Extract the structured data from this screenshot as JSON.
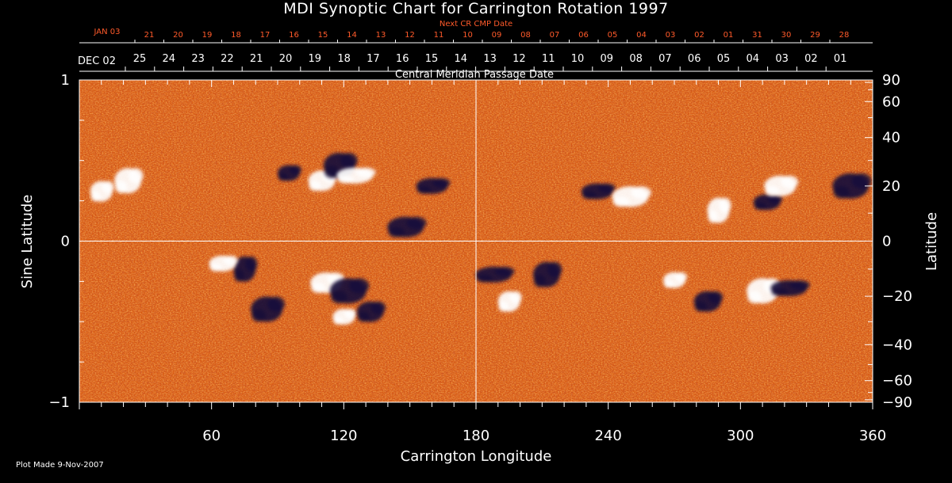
{
  "title": "MDI Synoptic Chart for Carrington Rotation 1997",
  "footer": "Plot Made  9-Nov-2007",
  "top_axis": {
    "next_cr_label": "Next CR CMP Date",
    "next_cr_start": "JAN 03",
    "next_cr_dates": [
      "21",
      "20",
      "19",
      "18",
      "17",
      "16",
      "15",
      "14",
      "13",
      "12",
      "11",
      "10",
      "09",
      "08",
      "07",
      "06",
      "05",
      "04",
      "03",
      "02",
      "01",
      "31",
      "30",
      "29",
      "28"
    ],
    "cmp_start": "DEC 02",
    "cmp_dates": [
      "25",
      "24",
      "23",
      "22",
      "21",
      "20",
      "19",
      "18",
      "17",
      "16",
      "15",
      "14",
      "13",
      "12",
      "11",
      "10",
      "09",
      "08",
      "07",
      "06",
      "05",
      "04",
      "03",
      "02",
      "01"
    ],
    "cmp_label": "Central Meridian Passage Date"
  },
  "colors": {
    "background": "#000000",
    "map_base": "#d85a14",
    "map_light": "#ff9a3a",
    "negative_polarity": "#1a0a3a",
    "positive_polarity": "#ffffff",
    "accent_red": "#ff5a2a"
  },
  "chart_data": {
    "type": "heatmap",
    "title": "MDI Synoptic Chart for Carrington Rotation 1997",
    "xlabel": "Carrington Longitude",
    "ylabel_left": "Sine Latitude",
    "ylabel_right": "Latitude",
    "xlim": [
      0,
      360
    ],
    "ylim": [
      -1,
      1
    ],
    "x_ticks": [
      60,
      120,
      180,
      240,
      300,
      360
    ],
    "y_left_ticks": [
      {
        "value": 1,
        "label": "1"
      },
      {
        "value": 0,
        "label": "0"
      },
      {
        "value": -1,
        "label": "−1"
      }
    ],
    "y_right_ticks": [
      90,
      60,
      40,
      20,
      0,
      -20,
      -40,
      -60,
      -90
    ],
    "grid": {
      "horizontal_at_sinlat": 0,
      "vertical_at_longitude": 180
    },
    "active_regions": [
      {
        "lon": 95,
        "lat": 25,
        "polarity": "negative"
      },
      {
        "lon": 110,
        "lat": 22,
        "polarity": "positive"
      },
      {
        "lon": 118,
        "lat": 28,
        "polarity": "negative"
      },
      {
        "lon": 125,
        "lat": 24,
        "polarity": "positive"
      },
      {
        "lon": 10,
        "lat": 18,
        "polarity": "positive"
      },
      {
        "lon": 22,
        "lat": 22,
        "polarity": "positive"
      },
      {
        "lon": 160,
        "lat": 20,
        "polarity": "negative"
      },
      {
        "lon": 148,
        "lat": 5,
        "polarity": "negative"
      },
      {
        "lon": 75,
        "lat": -10,
        "polarity": "negative"
      },
      {
        "lon": 65,
        "lat": -8,
        "polarity": "positive"
      },
      {
        "lon": 112,
        "lat": -15,
        "polarity": "positive"
      },
      {
        "lon": 122,
        "lat": -18,
        "polarity": "negative"
      },
      {
        "lon": 120,
        "lat": -28,
        "polarity": "positive"
      },
      {
        "lon": 132,
        "lat": -26,
        "polarity": "negative"
      },
      {
        "lon": 85,
        "lat": -25,
        "polarity": "negative"
      },
      {
        "lon": 188,
        "lat": -12,
        "polarity": "negative"
      },
      {
        "lon": 195,
        "lat": -22,
        "polarity": "positive"
      },
      {
        "lon": 212,
        "lat": -12,
        "polarity": "negative"
      },
      {
        "lon": 235,
        "lat": 18,
        "polarity": "negative"
      },
      {
        "lon": 250,
        "lat": 16,
        "polarity": "positive"
      },
      {
        "lon": 290,
        "lat": 11,
        "polarity": "positive"
      },
      {
        "lon": 312,
        "lat": 14,
        "polarity": "negative"
      },
      {
        "lon": 318,
        "lat": 20,
        "polarity": "positive"
      },
      {
        "lon": 350,
        "lat": 20,
        "polarity": "negative"
      },
      {
        "lon": 270,
        "lat": -14,
        "polarity": "positive"
      },
      {
        "lon": 285,
        "lat": -22,
        "polarity": "negative"
      },
      {
        "lon": 310,
        "lat": -18,
        "polarity": "positive"
      },
      {
        "lon": 322,
        "lat": -17,
        "polarity": "negative"
      }
    ]
  }
}
